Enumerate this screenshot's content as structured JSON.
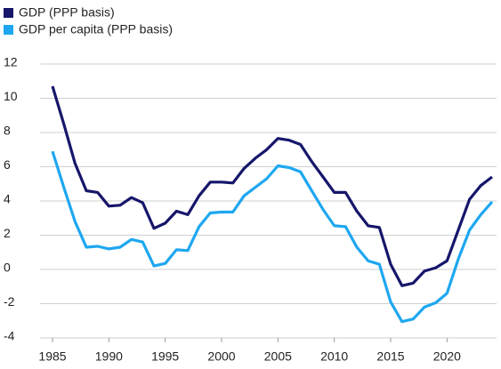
{
  "chart_data": {
    "type": "line",
    "x": [
      1985,
      1986,
      1987,
      1988,
      1989,
      1990,
      1991,
      1992,
      1993,
      1994,
      1995,
      1996,
      1997,
      1998,
      1999,
      2000,
      2001,
      2002,
      2003,
      2004,
      2005,
      2006,
      2007,
      2008,
      2009,
      2010,
      2011,
      2012,
      2013,
      2014,
      2015,
      2016,
      2017,
      2018,
      2019,
      2020,
      2021,
      2022,
      2023,
      2024
    ],
    "series": [
      {
        "name": "GDP (PPP basis)",
        "color": "#16166b",
        "values": [
          10.7,
          8.5,
          6.2,
          4.6,
          4.5,
          3.7,
          3.75,
          4.2,
          3.9,
          2.4,
          2.7,
          3.4,
          3.2,
          4.3,
          5.1,
          5.1,
          5.05,
          5.9,
          6.5,
          7.0,
          7.65,
          7.55,
          7.3,
          6.3,
          5.4,
          4.5,
          4.5,
          3.4,
          2.55,
          2.45,
          0.3,
          -0.95,
          -0.8,
          -0.1,
          0.1,
          0.5,
          2.3,
          4.1,
          4.9,
          5.4
        ]
      },
      {
        "name": "GDP per capita (PPP basis)",
        "color": "#1ea7f0",
        "values": [
          6.9,
          4.8,
          2.8,
          1.3,
          1.35,
          1.2,
          1.3,
          1.75,
          1.6,
          0.2,
          0.35,
          1.15,
          1.1,
          2.5,
          3.3,
          3.35,
          3.35,
          4.3,
          4.8,
          5.3,
          6.05,
          5.95,
          5.7,
          4.6,
          3.5,
          2.55,
          2.5,
          1.3,
          0.5,
          0.3,
          -1.9,
          -3.05,
          -2.9,
          -2.2,
          -1.95,
          -1.4,
          0.6,
          2.3,
          3.2,
          3.95
        ]
      }
    ],
    "xlim": [
      1985,
      2024
    ],
    "xticks": [
      1985,
      1990,
      1995,
      2000,
      2005,
      2010,
      2015,
      2020
    ],
    "ylim": [
      -4,
      12
    ],
    "yticks": [
      -4,
      -2,
      0,
      2,
      4,
      6,
      8,
      10,
      12
    ],
    "grid": true,
    "legend": "top-left"
  }
}
